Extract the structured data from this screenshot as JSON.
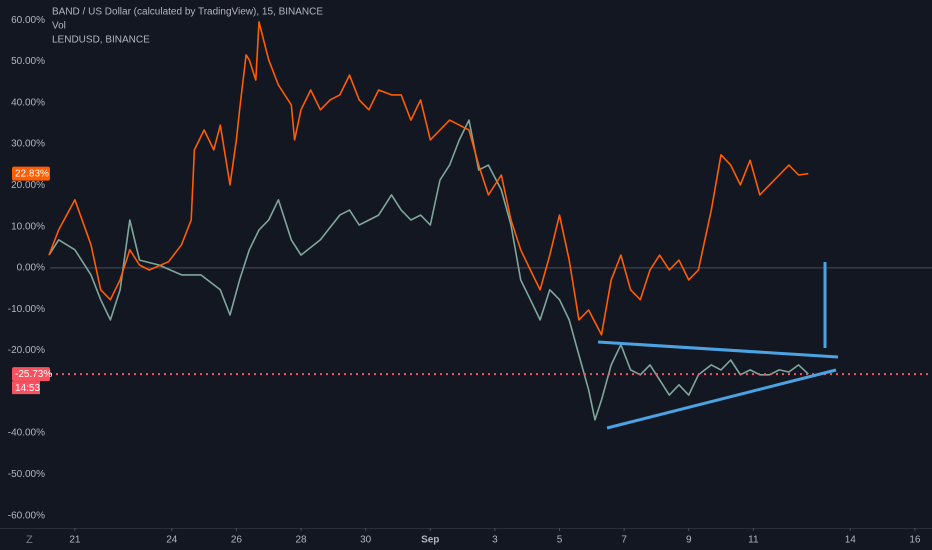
{
  "chart_data": {
    "type": "line",
    "legend": [
      "BAND / US Dollar (calculated by TradingView), 15, BINANCE",
      "Vol",
      "LENDUSD, BINANCE"
    ],
    "xlim": [
      -0.77,
      26.53
    ],
    "xticks": [
      {
        "value": 0,
        "label": "21"
      },
      {
        "value": 3,
        "label": "24"
      },
      {
        "value": 5,
        "label": "26"
      },
      {
        "value": 7,
        "label": "28"
      },
      {
        "value": 9,
        "label": "30"
      },
      {
        "value": 11,
        "label": "Sep"
      },
      {
        "value": 13,
        "label": "3"
      },
      {
        "value": 15,
        "label": "5"
      },
      {
        "value": 17,
        "label": "7"
      },
      {
        "value": 19,
        "label": "9"
      },
      {
        "value": 21,
        "label": "11"
      },
      {
        "value": 24,
        "label": "14"
      },
      {
        "value": 26,
        "label": "16"
      }
    ],
    "ylim": [
      -63,
      64.9
    ],
    "yticks": [
      {
        "value": 60,
        "label": "60.00%"
      },
      {
        "value": 50,
        "label": "50.00%"
      },
      {
        "value": 40,
        "label": "40.00%"
      },
      {
        "value": 30,
        "label": "30.00%"
      },
      {
        "value": 20,
        "label": "20.00%"
      },
      {
        "value": 10,
        "label": "10.00%"
      },
      {
        "value": 0,
        "label": "0.00%"
      },
      {
        "value": -10,
        "label": "-10.00%"
      },
      {
        "value": -20,
        "label": "-20.00%"
      },
      {
        "value": -40,
        "label": "-40.00%"
      },
      {
        "value": -50,
        "label": "-50.00%"
      },
      {
        "value": -60,
        "label": "-60.00%"
      }
    ],
    "zero_line": true,
    "countdown": "14:53",
    "series": [
      {
        "name": "BAND / US Dollar (calculated by TradingView), 15, BINANCE",
        "color": "#7fa69c",
        "last_label": "-25.73%",
        "tag_color": "#f7525f",
        "x": [
          -0.8,
          -0.5,
          0,
          0.5,
          0.8,
          1.1,
          1.4,
          1.7,
          2.0,
          2.6,
          3.3,
          3.9,
          4.5,
          4.8,
          5.1,
          5.4,
          5.7,
          6.0,
          6.3,
          6.7,
          7.0,
          7.6,
          8.2,
          8.5,
          8.8,
          9.4,
          9.8,
          10.1,
          10.4,
          10.7,
          11.0,
          11.3,
          11.6,
          11.9,
          12.2,
          12.5,
          12.8,
          13.2,
          13.5,
          13.8,
          14.1,
          14.4,
          14.7,
          15.0,
          15.3,
          15.6,
          15.9,
          16.1,
          16.3,
          16.6,
          16.9,
          17.2,
          17.5,
          17.8,
          18.1,
          18.4,
          18.7,
          19.0,
          19.3,
          19.7,
          20.0,
          20.3,
          20.6,
          20.9,
          21.2,
          21.5,
          21.8,
          22.1,
          22.4,
          22.7
        ],
        "values": [
          3.1,
          6.8,
          4.4,
          -1.7,
          -7.7,
          -12.6,
          -5.3,
          11.6,
          1.9,
          0.7,
          -1.7,
          -1.7,
          -5.3,
          -11.4,
          -2.9,
          4.4,
          9.2,
          11.6,
          16.5,
          6.8,
          3.1,
          6.8,
          12.8,
          14.0,
          10.4,
          12.8,
          17.7,
          14.0,
          11.6,
          12.8,
          10.4,
          21.3,
          24.9,
          31.0,
          35.8,
          23.7,
          24.9,
          18.9,
          10.4,
          -2.9,
          -7.7,
          -12.6,
          -5.3,
          -7.7,
          -12.6,
          -21.1,
          -29.5,
          -36.8,
          -32.0,
          -23.5,
          -18.6,
          -24.7,
          -25.9,
          -23.5,
          -27.1,
          -30.8,
          -28.3,
          -30.8,
          -25.9,
          -23.5,
          -24.7,
          -22.3,
          -25.9,
          -24.7,
          -25.9,
          -25.9,
          -24.7,
          -25.2,
          -23.5,
          -25.73
        ]
      },
      {
        "name": "LENDUSD, BINANCE",
        "color": "#ff5d00",
        "last_label": "22.83%",
        "tag_color": "#ff5d00",
        "x": [
          -0.8,
          -0.5,
          0,
          0.5,
          0.8,
          1.1,
          1.4,
          1.7,
          2.0,
          2.3,
          2.9,
          3.3,
          3.6,
          3.7,
          4.0,
          4.3,
          4.5,
          4.8,
          5.0,
          5.1,
          5.3,
          5.4,
          5.6,
          5.7,
          6.0,
          6.3,
          6.7,
          6.8,
          7.0,
          7.3,
          7.6,
          7.9,
          8.2,
          8.5,
          8.8,
          9.1,
          9.4,
          9.8,
          10.1,
          10.4,
          10.7,
          11.0,
          11.3,
          11.6,
          11.9,
          12.2,
          12.5,
          12.8,
          13.2,
          13.5,
          13.8,
          14.1,
          14.4,
          14.7,
          15.0,
          15.3,
          15.6,
          15.9,
          16.3,
          16.6,
          16.9,
          17.2,
          17.5,
          17.8,
          18.1,
          18.4,
          18.7,
          19.0,
          19.3,
          19.7,
          20.0,
          20.3,
          20.6,
          20.9,
          21.2,
          21.5,
          21.8,
          22.1,
          22.4,
          22.7
        ],
        "values": [
          3.1,
          9.2,
          16.5,
          5.6,
          -5.3,
          -7.7,
          -2.9,
          4.4,
          0.7,
          -0.5,
          1.5,
          5.6,
          11.6,
          28.6,
          33.4,
          28.6,
          34.6,
          20.1,
          31.0,
          38.3,
          51.6,
          50.4,
          45.5,
          59.6,
          50.4,
          44.3,
          39.5,
          31.0,
          38.3,
          43.1,
          38.3,
          40.7,
          41.9,
          46.7,
          40.7,
          38.3,
          43.1,
          41.9,
          41.9,
          35.8,
          40.7,
          31.0,
          33.4,
          35.8,
          34.6,
          33.4,
          24.9,
          17.7,
          22.5,
          11.6,
          4.4,
          -0.5,
          -5.3,
          3.1,
          12.8,
          1.9,
          -12.6,
          -10.2,
          -16.2,
          -2.9,
          3.1,
          -5.3,
          -7.7,
          -0.5,
          3.1,
          -0.5,
          1.9,
          -2.9,
          -0.5,
          14.0,
          27.4,
          24.9,
          20.1,
          26.1,
          17.7,
          20.1,
          22.5,
          24.9,
          22.5,
          22.83
        ]
      }
    ]
  }
}
